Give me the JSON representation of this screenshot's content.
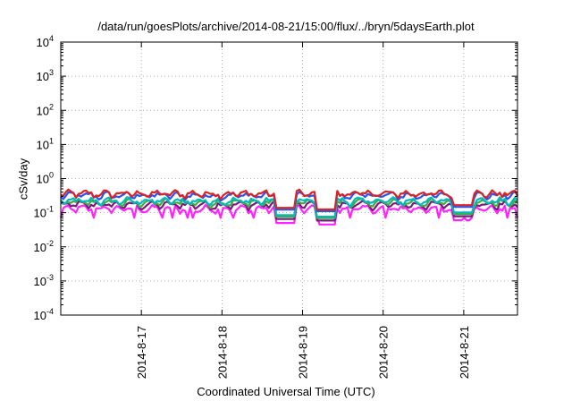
{
  "chart_data": {
    "type": "line",
    "title": "/data/run/goesPlots/archive/2014-08-21/15:00/flux/../bryn/5daysEarth.plot",
    "xlabel": "Coordinated Universal Time (UTC)",
    "ylabel": "cSv/day",
    "yscale": "log",
    "ylim": [
      0.0001,
      10000
    ],
    "xlim": [
      "2014-08-16 00:00",
      "2014-08-21 16:00"
    ],
    "grid": true,
    "y_ticks": [
      {
        "base": "10",
        "exp": "-4"
      },
      {
        "base": "10",
        "exp": "-3"
      },
      {
        "base": "10",
        "exp": "-2"
      },
      {
        "base": "10",
        "exp": "-1"
      },
      {
        "base": "10",
        "exp": "0"
      },
      {
        "base": "10",
        "exp": "1"
      },
      {
        "base": "10",
        "exp": "2"
      },
      {
        "base": "10",
        "exp": "3"
      },
      {
        "base": "10",
        "exp": "4"
      }
    ],
    "x_ticks": [
      "2014-8-17",
      "2014-8-18",
      "2014-8-19",
      "2014-8-20",
      "2014-8-21"
    ],
    "series": [
      {
        "color": "#dd2222",
        "level": 0.36
      },
      {
        "color": "#2a55ee",
        "level": 0.32
      },
      {
        "color": "#00bbbb",
        "level": 0.22
      },
      {
        "color": "#44aa44",
        "level": 0.2
      },
      {
        "color": "#7a1a7a",
        "level": 0.17
      },
      {
        "color": "#ff22ff",
        "level": 0.13
      }
    ],
    "dips": [
      {
        "x": "2014-08-18 19:00",
        "min": 0.05
      },
      {
        "x": "2014-08-19 07:00",
        "min": 0.045
      },
      {
        "x": "2014-08-21 00:00",
        "min": 0.06
      }
    ]
  }
}
